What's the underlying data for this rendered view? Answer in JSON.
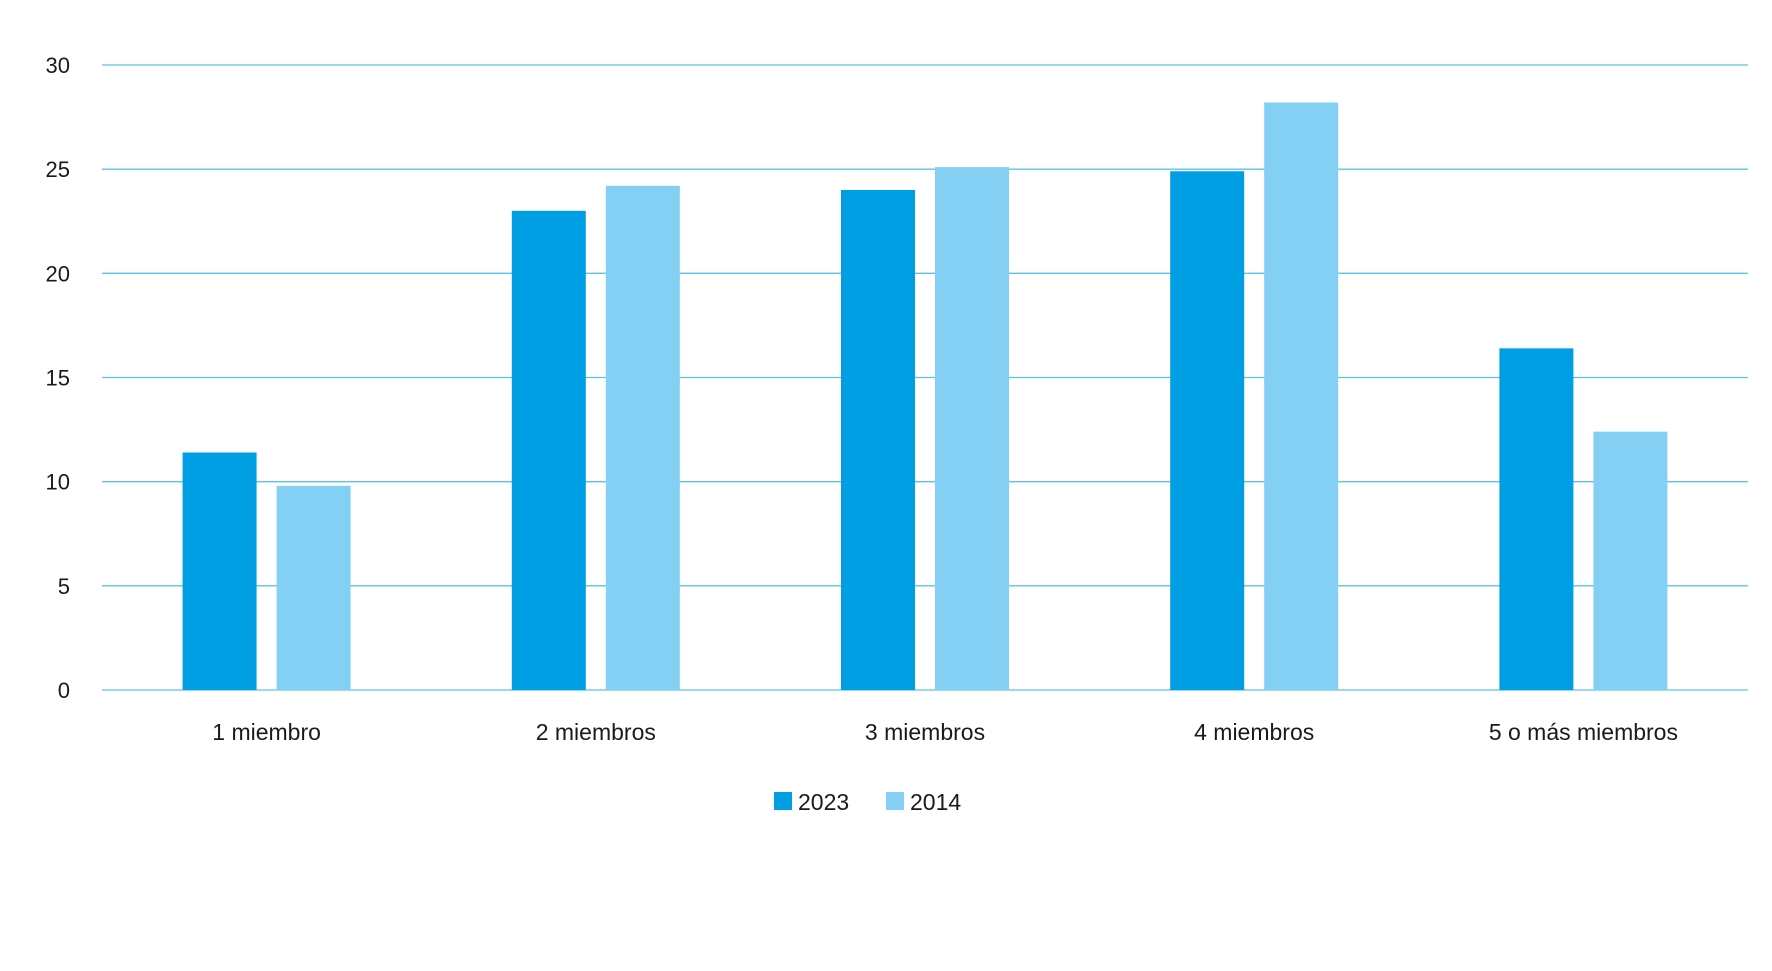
{
  "chart_data": {
    "type": "bar",
    "title": "",
    "xlabel": "",
    "ylabel": "",
    "categories": [
      "1 miembro",
      "2 miembros",
      "3 miembros",
      "4 miembros",
      "5 o más miembros"
    ],
    "series": [
      {
        "name": "2023",
        "color": "#009FE3",
        "values": [
          11.4,
          23.0,
          24.0,
          24.9,
          16.4
        ]
      },
      {
        "name": "2014",
        "color": "#84CFF4",
        "values": [
          9.8,
          24.2,
          25.1,
          28.2,
          12.4
        ]
      }
    ],
    "ylim": [
      0,
      30
    ],
    "yticks": [
      0,
      5,
      10,
      15,
      20,
      25,
      30
    ],
    "grid": true,
    "gridline_color": "#5BC3E8",
    "legend_position": "bottom-center"
  }
}
